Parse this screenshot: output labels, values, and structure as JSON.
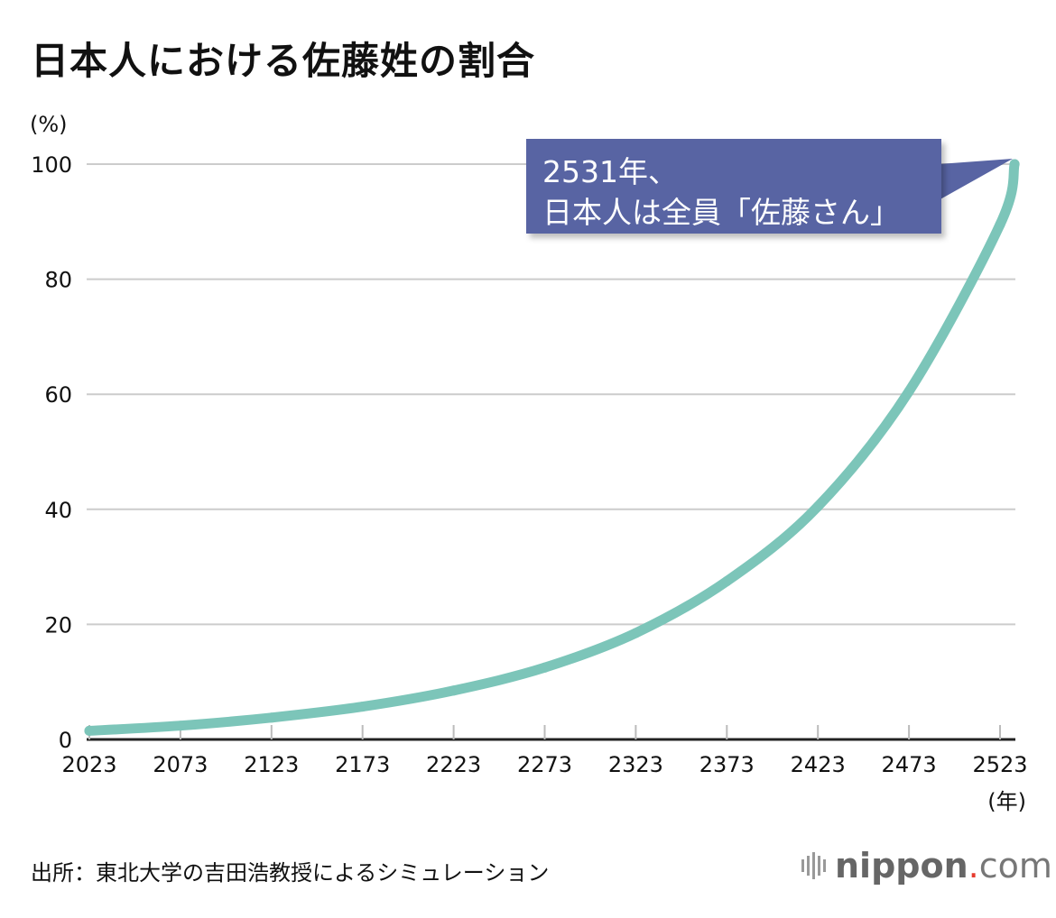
{
  "title": "日本人における佐藤姓の割合",
  "source": "出所：東北大学の吉田浩教授によるシミュレーション",
  "brand": {
    "name": "nippon",
    "dot": ".",
    "suffix": "com"
  },
  "colors": {
    "line": "#7cc5b9",
    "annotation_bg": "#5864a3",
    "grid": "#cccccc"
  },
  "annotation": {
    "line1": "2531年、",
    "line2": "日本人は全員「佐藤さん」"
  },
  "chart_data": {
    "type": "line",
    "title": "日本人における佐藤姓の割合",
    "xlabel": "(年)",
    "ylabel": "(%)",
    "xlim": [
      2023,
      2531
    ],
    "ylim": [
      0,
      100
    ],
    "xticks": [
      2023,
      2073,
      2123,
      2173,
      2223,
      2273,
      2323,
      2373,
      2423,
      2473,
      2523
    ],
    "yticks": [
      0,
      20,
      40,
      60,
      80,
      100
    ],
    "grid": true,
    "legend": "none",
    "series": [
      {
        "x": [
          2023,
          2073,
          2123,
          2173,
          2223,
          2273,
          2323,
          2373,
          2423,
          2473,
          2523,
          2531
        ],
        "values": [
          1.5,
          2.4,
          3.8,
          5.7,
          8.5,
          12.5,
          18.5,
          27.5,
          40.5,
          60.5,
          89.5,
          100
        ]
      }
    ]
  }
}
